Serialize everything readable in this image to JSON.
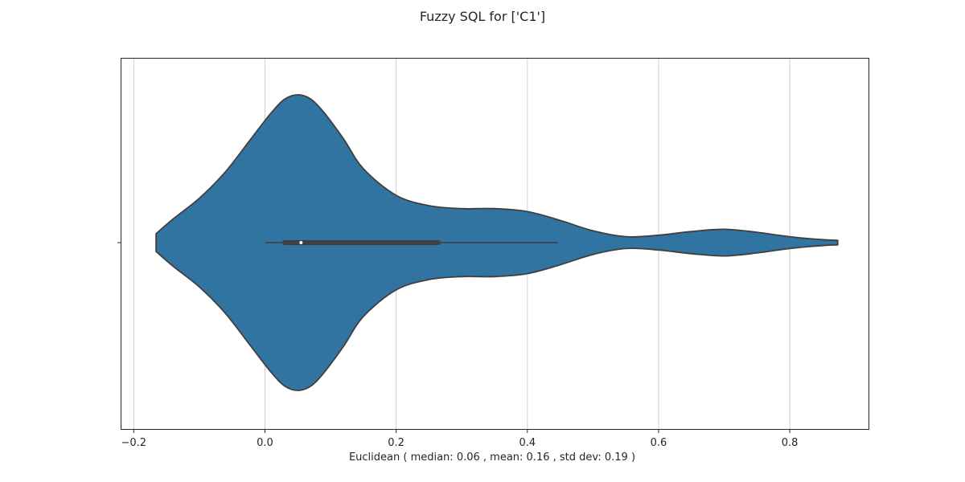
{
  "chart_data": {
    "type": "violin",
    "title": "Fuzzy SQL for ['C1']",
    "xlabel": "Euclidean ( median: 0.06 , mean: 0.16 , std dev: 0.19 )",
    "ylabel": "",
    "xlim": [
      -0.22,
      0.92
    ],
    "xticks": [
      -0.2,
      0.0,
      0.2,
      0.4,
      0.6,
      0.8
    ],
    "xtick_labels": [
      "−0.2",
      "0.0",
      "0.2",
      "0.4",
      "0.6",
      "0.8"
    ],
    "grid": "x",
    "orientation": "horizontal",
    "fill_color": "#3274a1",
    "edge_color": "#3f3f3f",
    "box": {
      "whisker_low": 0.0,
      "q1": 0.027,
      "median": 0.055,
      "q3": 0.267,
      "whisker_high": 0.446
    },
    "density_profile": {
      "x": [
        -0.166,
        -0.14,
        -0.1,
        -0.06,
        -0.02,
        0.01,
        0.03,
        0.05,
        0.07,
        0.09,
        0.12,
        0.15,
        0.2,
        0.25,
        0.3,
        0.35,
        0.4,
        0.45,
        0.5,
        0.55,
        0.6,
        0.65,
        0.7,
        0.75,
        0.8,
        0.85,
        0.873
      ],
      "relative_half_width": [
        0.06,
        0.16,
        0.3,
        0.48,
        0.71,
        0.88,
        0.97,
        1.0,
        0.97,
        0.88,
        0.7,
        0.5,
        0.32,
        0.25,
        0.23,
        0.23,
        0.21,
        0.15,
        0.08,
        0.04,
        0.05,
        0.075,
        0.09,
        0.07,
        0.04,
        0.02,
        0.015
      ]
    }
  }
}
